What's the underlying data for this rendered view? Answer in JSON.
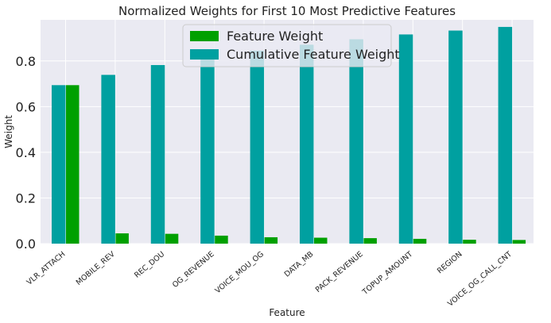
{
  "chart_data": {
    "type": "bar",
    "title": "Normalized Weights for First 10 Most Predictive Features",
    "xlabel": "Feature",
    "ylabel": "Weight",
    "ylim": [
      0,
      0.98
    ],
    "yticks": [
      "0.0",
      "0.2",
      "0.4",
      "0.6",
      "0.8"
    ],
    "grid": true,
    "legend_position": "top-center",
    "categories": [
      "VLR_ATTACH",
      "MOBILE_REV",
      "REC_DOU",
      "OG_REVENUE",
      "VOICE_MOU_OG",
      "DATA_MB",
      "PACK_REVENUE",
      "TOPUP_AMOUNT",
      "REGION",
      "VOICE_OG_CALL_CNT"
    ],
    "series": [
      {
        "name": "Feature Weight",
        "color": "#00a000",
        "values": [
          0.694,
          0.045,
          0.043,
          0.035,
          0.028,
          0.026,
          0.024,
          0.021,
          0.017,
          0.016
        ]
      },
      {
        "name": "Cumulative Feature Weight",
        "color": "#00a0a0",
        "values": [
          0.694,
          0.739,
          0.782,
          0.817,
          0.845,
          0.871,
          0.895,
          0.916,
          0.933,
          0.949
        ]
      }
    ]
  }
}
